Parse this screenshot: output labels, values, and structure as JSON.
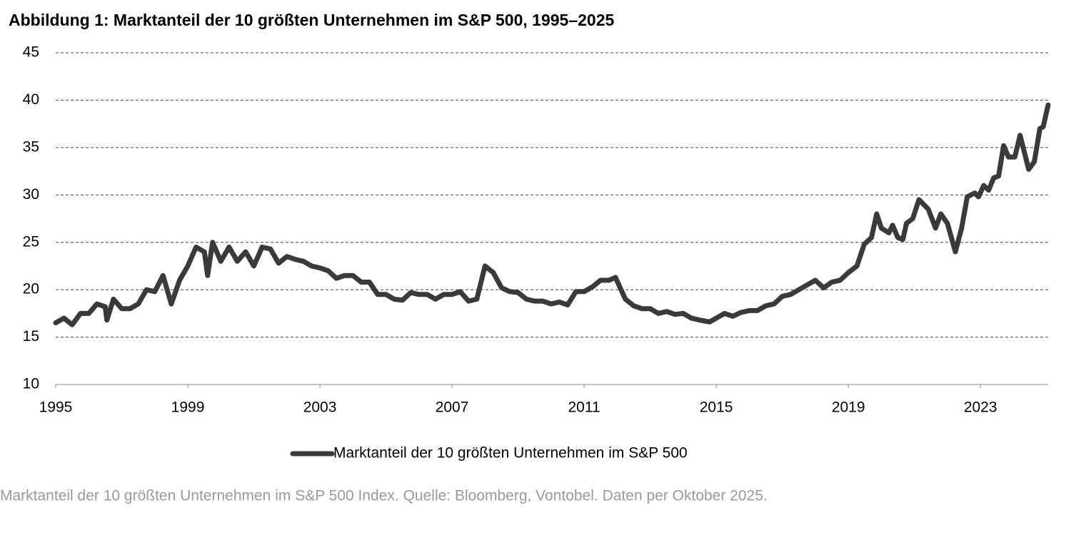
{
  "chart_data": {
    "type": "line",
    "title": "Abbildung 1: Marktanteil der 10 größten Unternehmen im S&P 500, 1995–2025",
    "caption": "Marktanteil der 10 größten Unternehmen im S&P 500 Index. Quelle: Bloomberg, Vontobel. Daten per Oktober 2025.",
    "x": [
      1995.0,
      1995.25,
      1995.5,
      1995.75,
      1996.0,
      1996.25,
      1996.5,
      1996.55,
      1996.75,
      1997.0,
      1997.25,
      1997.5,
      1997.75,
      1998.0,
      1998.25,
      1998.5,
      1998.75,
      1999.0,
      1999.25,
      1999.5,
      1999.6,
      1999.75,
      2000.0,
      2000.25,
      2000.5,
      2000.75,
      2001.0,
      2001.25,
      2001.5,
      2001.75,
      2002.0,
      2002.25,
      2002.5,
      2002.75,
      2003.0,
      2003.25,
      2003.5,
      2003.75,
      2004.0,
      2004.25,
      2004.5,
      2004.75,
      2005.0,
      2005.25,
      2005.5,
      2005.75,
      2006.0,
      2006.25,
      2006.5,
      2006.75,
      2007.0,
      2007.25,
      2007.5,
      2007.75,
      2008.0,
      2008.25,
      2008.5,
      2008.75,
      2009.0,
      2009.25,
      2009.5,
      2009.75,
      2010.0,
      2010.25,
      2010.5,
      2010.75,
      2011.0,
      2011.25,
      2011.5,
      2011.75,
      2011.95,
      2012.25,
      2012.5,
      2012.75,
      2013.0,
      2013.25,
      2013.5,
      2013.75,
      2014.0,
      2014.25,
      2014.5,
      2014.8,
      2015.0,
      2015.25,
      2015.5,
      2015.75,
      2016.0,
      2016.25,
      2016.5,
      2016.75,
      2017.0,
      2017.25,
      2017.5,
      2017.75,
      2018.0,
      2018.25,
      2018.5,
      2018.75,
      2019.0,
      2019.26,
      2019.48,
      2019.7,
      2019.86,
      2020.0,
      2020.23,
      2020.34,
      2020.5,
      2020.65,
      2020.76,
      2020.95,
      2021.14,
      2021.42,
      2021.64,
      2021.8,
      2022.0,
      2022.24,
      2022.43,
      2022.6,
      2022.83,
      2022.94,
      2023.1,
      2023.25,
      2023.4,
      2023.55,
      2023.7,
      2023.85,
      2024.04,
      2024.2,
      2024.46,
      2024.63,
      2024.8,
      2024.9,
      2025.05
    ],
    "series": [
      {
        "name": "Marktanteil der 10 größten Unternehmen im S&P 500",
        "color": "#3a3a3a",
        "values": [
          16.5,
          17.0,
          16.3,
          17.5,
          17.5,
          18.5,
          18.2,
          16.8,
          19.0,
          18.0,
          18.0,
          18.5,
          20.0,
          19.8,
          21.5,
          18.5,
          21.0,
          22.5,
          24.5,
          24.0,
          21.5,
          25.0,
          23.0,
          24.5,
          23.0,
          24.0,
          22.5,
          24.5,
          24.3,
          22.8,
          23.5,
          23.2,
          23.0,
          22.5,
          22.3,
          22.0,
          21.2,
          21.5,
          21.5,
          20.8,
          20.8,
          19.5,
          19.5,
          19.0,
          18.9,
          19.7,
          19.5,
          19.5,
          19.0,
          19.5,
          19.5,
          19.8,
          18.8,
          19.0,
          22.5,
          21.8,
          20.2,
          19.8,
          19.7,
          19.0,
          18.8,
          18.8,
          18.5,
          18.7,
          18.4,
          19.8,
          19.8,
          20.3,
          21.0,
          21.0,
          21.3,
          19.0,
          18.3,
          18.0,
          18.0,
          17.5,
          17.7,
          17.4,
          17.5,
          17.0,
          16.8,
          16.6,
          17.0,
          17.5,
          17.2,
          17.6,
          17.8,
          17.8,
          18.3,
          18.5,
          19.3,
          19.5,
          20.0,
          20.5,
          21.0,
          20.2,
          20.8,
          21.0,
          21.8,
          22.5,
          24.8,
          25.5,
          28.0,
          26.5,
          26.0,
          26.8,
          25.5,
          25.3,
          27.0,
          27.5,
          29.5,
          28.5,
          26.5,
          28.0,
          27.0,
          24.0,
          26.5,
          29.8,
          30.2,
          29.8,
          31.0,
          30.5,
          31.8,
          32.0,
          35.2,
          34.0,
          34.0,
          36.3,
          32.7,
          33.5,
          37.0,
          37.2,
          39.5
        ]
      }
    ],
    "xlim": [
      1995,
      2025.05
    ],
    "xticks": [
      1995,
      1999,
      2003,
      2007,
      2011,
      2015,
      2019,
      2023
    ],
    "ylim": [
      10,
      45
    ],
    "yticks": [
      10,
      15,
      20,
      25,
      30,
      35,
      40,
      45
    ],
    "grid": true,
    "legend": "bottom"
  }
}
